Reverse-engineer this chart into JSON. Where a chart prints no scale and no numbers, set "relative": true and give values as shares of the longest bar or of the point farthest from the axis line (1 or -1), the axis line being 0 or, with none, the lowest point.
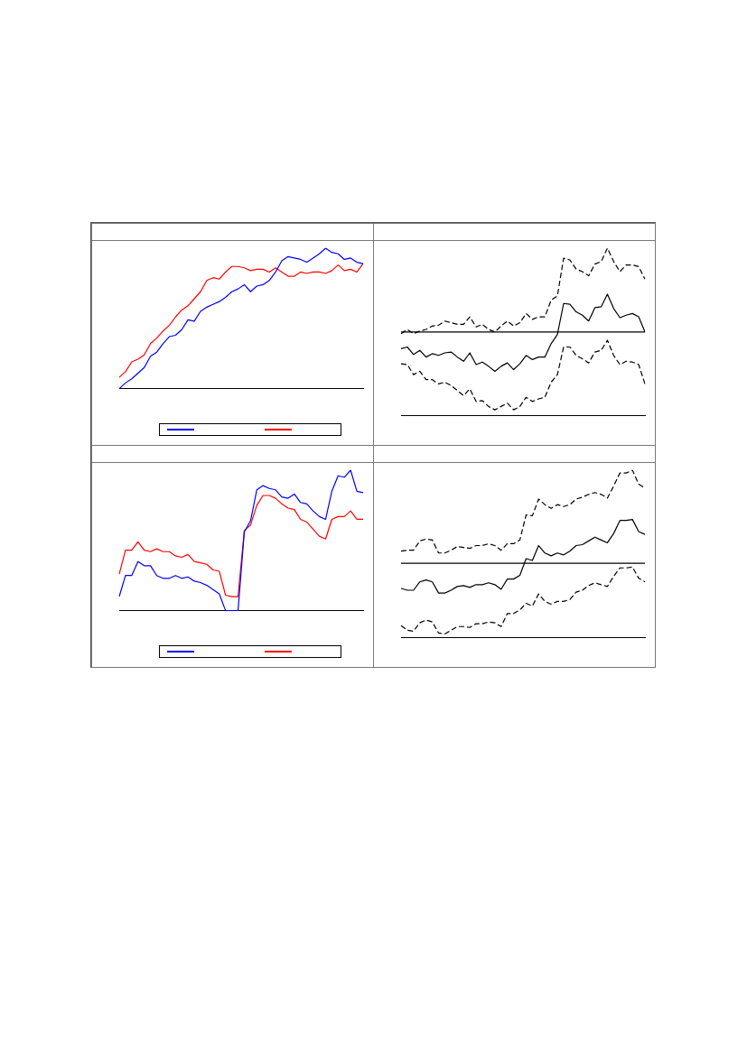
{
  "chart_data": [
    {
      "type": "line",
      "relative": true,
      "categories": [
        null,
        null,
        null,
        null,
        null,
        null,
        null,
        null,
        null,
        null,
        null,
        null,
        null,
        null,
        null,
        null,
        null,
        null,
        null,
        null,
        null,
        null,
        null,
        null,
        null,
        null,
        null,
        null,
        null,
        null,
        null,
        null,
        null,
        null,
        null,
        null,
        null,
        null,
        null,
        null
      ],
      "series": [
        {
          "color": "#0000ff",
          "values": [
            0,
            0.04,
            0.07,
            0.11,
            0.15,
            0.23,
            0.26,
            0.32,
            0.37,
            0.38,
            0.42,
            0.49,
            0.48,
            0.55,
            0.58,
            0.6,
            0.62,
            0.65,
            0.69,
            0.71,
            0.74,
            0.69,
            0.73,
            0.74,
            0.77,
            0.83,
            0.91,
            0.94,
            0.93,
            0.92,
            0.9,
            0.93,
            0.96,
            1,
            0.97,
            0.96,
            0.92,
            0.93,
            0.9,
            0.89
          ]
        },
        {
          "color": "#ff0000",
          "values": [
            0.08,
            0.12,
            0.19,
            0.21,
            0.24,
            0.32,
            0.36,
            0.41,
            0.45,
            0.51,
            0.56,
            0.59,
            0.64,
            0.69,
            0.77,
            0.79,
            0.78,
            0.83,
            0.87,
            0.87,
            0.86,
            0.84,
            0.85,
            0.85,
            0.83,
            0.86,
            0.83,
            0.8,
            0.8,
            0.83,
            0.82,
            0.83,
            0.83,
            0.82,
            0.84,
            0.88,
            0.84,
            0.85,
            0.83,
            0.89
          ]
        }
      ]
    },
    {
      "type": "line",
      "relative": true,
      "categories": [
        null,
        null,
        null,
        null,
        null,
        null,
        null,
        null,
        null,
        null,
        null,
        null,
        null,
        null,
        null,
        null,
        null,
        null,
        null,
        null,
        null,
        null,
        null,
        null,
        null,
        null,
        null,
        null,
        null,
        null,
        null,
        null,
        null,
        null,
        null,
        null,
        null,
        null,
        null,
        null
      ],
      "series": [
        {
          "color": "#000000",
          "line_style": "dashed",
          "values": [
            -0.02,
            0.03,
            -0.02,
            0.01,
            0.03,
            0.07,
            0.08,
            0.13,
            0.11,
            0.09,
            0.09,
            0.18,
            0.06,
            0.09,
            0.03,
            0,
            0.07,
            0.13,
            0.07,
            0.11,
            0.22,
            0.15,
            0.18,
            0.18,
            0.38,
            0.43,
            0.88,
            0.86,
            0.75,
            0.72,
            0.67,
            0.81,
            0.84,
            1,
            0.84,
            0.72,
            0.8,
            0.8,
            0.78,
            0.63
          ]
        },
        {
          "color": "#000000",
          "line_style": "solid",
          "values": [
            -0.2,
            -0.18,
            -0.27,
            -0.22,
            -0.3,
            -0.26,
            -0.28,
            -0.25,
            -0.24,
            -0.3,
            -0.35,
            -0.25,
            -0.39,
            -0.36,
            -0.41,
            -0.47,
            -0.41,
            -0.37,
            -0.45,
            -0.38,
            -0.28,
            -0.33,
            -0.3,
            -0.3,
            -0.14,
            -0.03,
            0.34,
            0.33,
            0.24,
            0.2,
            0.13,
            0.29,
            0.3,
            0.45,
            0.28,
            0.17,
            0.2,
            0.22,
            0.18,
            0
          ]
        },
        {
          "color": "#000000",
          "line_style": "dashed",
          "values": [
            -0.38,
            -0.39,
            -0.51,
            -0.47,
            -0.57,
            -0.57,
            -0.62,
            -0.6,
            -0.64,
            -0.7,
            -0.76,
            -0.68,
            -0.83,
            -0.82,
            -0.89,
            -0.93,
            -0.89,
            -0.85,
            -0.93,
            -0.89,
            -0.78,
            -0.83,
            -0.8,
            -0.78,
            -0.6,
            -0.51,
            -0.18,
            -0.18,
            -0.28,
            -0.32,
            -0.37,
            -0.24,
            -0.22,
            -0.1,
            -0.28,
            -0.39,
            -0.35,
            -0.36,
            -0.39,
            -0.62
          ]
        }
      ]
    },
    {
      "type": "line",
      "relative": true,
      "categories": [
        null,
        null,
        null,
        null,
        null,
        null,
        null,
        null,
        null,
        null,
        null,
        null,
        null,
        null,
        null,
        null,
        null,
        null,
        null,
        null,
        null,
        null,
        null,
        null,
        null,
        null,
        null,
        null,
        null,
        null,
        null,
        null,
        null,
        null,
        null,
        null,
        null,
        null,
        null,
        null
      ],
      "series": [
        {
          "color": "#0000ff",
          "values": [
            0.1,
            0.25,
            0.25,
            0.35,
            0.32,
            0.32,
            0.25,
            0.23,
            0.23,
            0.25,
            0.23,
            0.24,
            0.21,
            0.2,
            0.18,
            0.15,
            0.12,
            0,
            0,
            0,
            0.56,
            0.64,
            0.86,
            0.89,
            0.87,
            0.86,
            0.81,
            0.8,
            0.83,
            0.77,
            0.76,
            0.71,
            0.67,
            0.65,
            0.85,
            0.96,
            0.95,
            1,
            0.85,
            0.84
          ]
        },
        {
          "color": "#ff0000",
          "values": [
            0.26,
            0.43,
            0.43,
            0.49,
            0.43,
            0.42,
            0.44,
            0.42,
            0.42,
            0.39,
            0.38,
            0.4,
            0.35,
            0.34,
            0.33,
            0.29,
            0.28,
            0.11,
            0.1,
            0.1,
            0.57,
            0.61,
            0.75,
            0.82,
            0.82,
            0.8,
            0.76,
            0.73,
            0.72,
            0.65,
            0.63,
            0.58,
            0.53,
            0.51,
            0.65,
            0.67,
            0.67,
            0.71,
            0.65,
            0.65
          ]
        }
      ]
    },
    {
      "type": "line",
      "relative": true,
      "categories": [
        null,
        null,
        null,
        null,
        null,
        null,
        null,
        null,
        null,
        null,
        null,
        null,
        null,
        null,
        null,
        null,
        null,
        null,
        null,
        null,
        null,
        null,
        null,
        null,
        null,
        null,
        null,
        null,
        null,
        null,
        null,
        null,
        null,
        null,
        null,
        null,
        null,
        null,
        null,
        null
      ],
      "series": [
        {
          "color": "#000000",
          "line_style": "dashed",
          "values": [
            0.13,
            0.14,
            0.14,
            0.24,
            0.26,
            0.25,
            0.11,
            0.11,
            0.14,
            0.18,
            0.17,
            0.16,
            0.19,
            0.19,
            0.21,
            0.19,
            0.14,
            0.21,
            0.21,
            0.25,
            0.52,
            0.51,
            0.69,
            0.63,
            0.59,
            0.63,
            0.61,
            0.63,
            0.69,
            0.71,
            0.74,
            0.76,
            0.74,
            0.7,
            0.83,
            0.97,
            0.97,
            1,
            0.85,
            0.81
          ]
        },
        {
          "color": "#000000",
          "line_style": "solid",
          "values": [
            -0.27,
            -0.29,
            -0.29,
            -0.2,
            -0.18,
            -0.2,
            -0.32,
            -0.32,
            -0.29,
            -0.25,
            -0.24,
            -0.26,
            -0.23,
            -0.23,
            -0.21,
            -0.23,
            -0.28,
            -0.17,
            -0.17,
            -0.13,
            0.05,
            0.03,
            0.19,
            0.11,
            0.08,
            0.11,
            0.09,
            0.13,
            0.19,
            0.2,
            0.24,
            0.28,
            0.25,
            0.22,
            0.32,
            0.46,
            0.46,
            0.47,
            0.34,
            0.31
          ]
        },
        {
          "color": "#000000",
          "line_style": "dashed",
          "values": [
            -0.67,
            -0.72,
            -0.73,
            -0.64,
            -0.61,
            -0.63,
            -0.75,
            -0.76,
            -0.72,
            -0.68,
            -0.68,
            -0.69,
            -0.65,
            -0.65,
            -0.63,
            -0.64,
            -0.68,
            -0.54,
            -0.54,
            -0.5,
            -0.43,
            -0.46,
            -0.33,
            -0.41,
            -0.44,
            -0.41,
            -0.41,
            -0.39,
            -0.31,
            -0.29,
            -0.24,
            -0.21,
            -0.23,
            -0.25,
            -0.14,
            -0.05,
            -0.05,
            -0.04,
            -0.16,
            -0.2
          ]
        }
      ]
    }
  ]
}
